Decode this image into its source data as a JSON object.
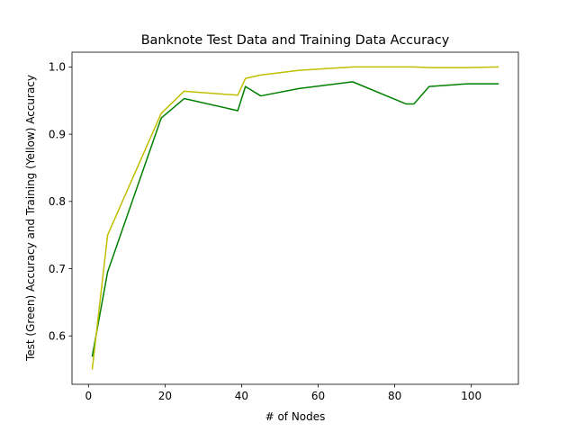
{
  "chart_data": {
    "type": "line",
    "title": "Banknote Test Data and Training Data Accuracy",
    "xlabel": "# of Nodes",
    "ylabel": "Test (Green) Accuracy and Training (Yellow) Accuracy",
    "xlim": [
      -4.3,
      112.3
    ],
    "ylim": [
      0.528,
      1.022
    ],
    "xticks": [
      0,
      20,
      40,
      60,
      80,
      100
    ],
    "yticks": [
      0.6,
      0.7,
      0.8,
      0.9,
      1.0
    ],
    "xtick_labels": [
      "0",
      "20",
      "40",
      "60",
      "80",
      "100"
    ],
    "ytick_labels": [
      "0.6",
      "0.7",
      "0.8",
      "0.9",
      "1.0"
    ],
    "grid": false,
    "series": [
      {
        "color": "#008000",
        "x": [
          1,
          5,
          19,
          25,
          39,
          41,
          45,
          55,
          69,
          83,
          85,
          89,
          99,
          107
        ],
        "y": [
          0.57,
          0.695,
          0.924,
          0.953,
          0.935,
          0.971,
          0.957,
          0.968,
          0.978,
          0.945,
          0.945,
          0.971,
          0.975,
          0.975
        ]
      },
      {
        "color": "#bfbf00",
        "x": [
          1,
          5,
          19,
          25,
          39,
          41,
          45,
          55,
          69,
          85,
          89,
          99,
          107
        ],
        "y": [
          0.551,
          0.75,
          0.931,
          0.964,
          0.958,
          0.983,
          0.988,
          0.995,
          1.0,
          1.0,
          0.999,
          0.999,
          1.0
        ]
      }
    ]
  }
}
